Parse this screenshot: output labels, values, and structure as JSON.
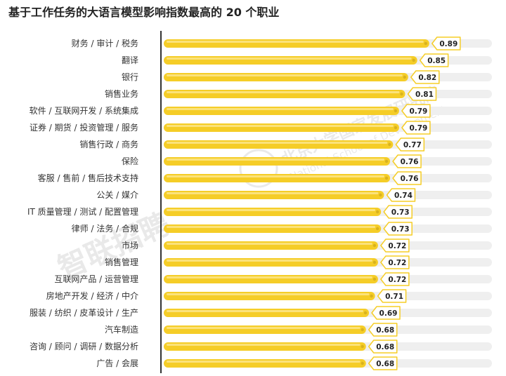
{
  "title": "基于工作任务的大语言模型影响指数最高的 20 个职业",
  "watermark": {
    "left": "智联招聘",
    "right_line1": "北京大学国家发展研究院",
    "right_line2": "National School of Development"
  },
  "colors": {
    "bar": "#F5CD27",
    "bar_highlight": "#FBE27A",
    "bar_dot": "#D8B21E",
    "track": "#EFEFEF",
    "axis": "#333333",
    "label_border": "#F5CD27",
    "text": "#333333"
  },
  "chart_data": {
    "type": "bar",
    "orientation": "horizontal",
    "categories": [
      "财务 / 审计 / 税务",
      "翻译",
      "银行",
      "销售业务",
      "软件 / 互联网开发 / 系统集成",
      "证券 / 期货 / 投资管理 / 服务",
      "销售行政 / 商务",
      "保险",
      "客服 / 售前 / 售后技术支持",
      "公关 / 媒介",
      "IT 质量管理 / 测试 / 配置管理",
      "律师 / 法务 / 合规",
      "市场",
      "销售管理",
      "互联网产品 / 运营管理",
      "房地产开发 / 经济 / 中介",
      "服装 / 纺织 / 皮革设计 / 生产",
      "汽车制造",
      "咨询 / 顾问 / 调研 / 数据分析",
      "广告 / 会展"
    ],
    "values": [
      0.89,
      0.85,
      0.82,
      0.81,
      0.79,
      0.79,
      0.77,
      0.76,
      0.76,
      0.74,
      0.73,
      0.73,
      0.72,
      0.72,
      0.72,
      0.71,
      0.69,
      0.68,
      0.68,
      0.68
    ],
    "value_labels": [
      "0.89",
      "0.85",
      "0.82",
      "0.81",
      "0.79",
      "0.79",
      "0.77",
      "0.76",
      "0.76",
      "0.74",
      "0.73",
      "0.73",
      "0.72",
      "0.72",
      "0.72",
      "0.71",
      "0.69",
      "0.68",
      "0.68",
      "0.68"
    ],
    "xlim": [
      0,
      1.0
    ],
    "grid": false,
    "legend": "none"
  }
}
